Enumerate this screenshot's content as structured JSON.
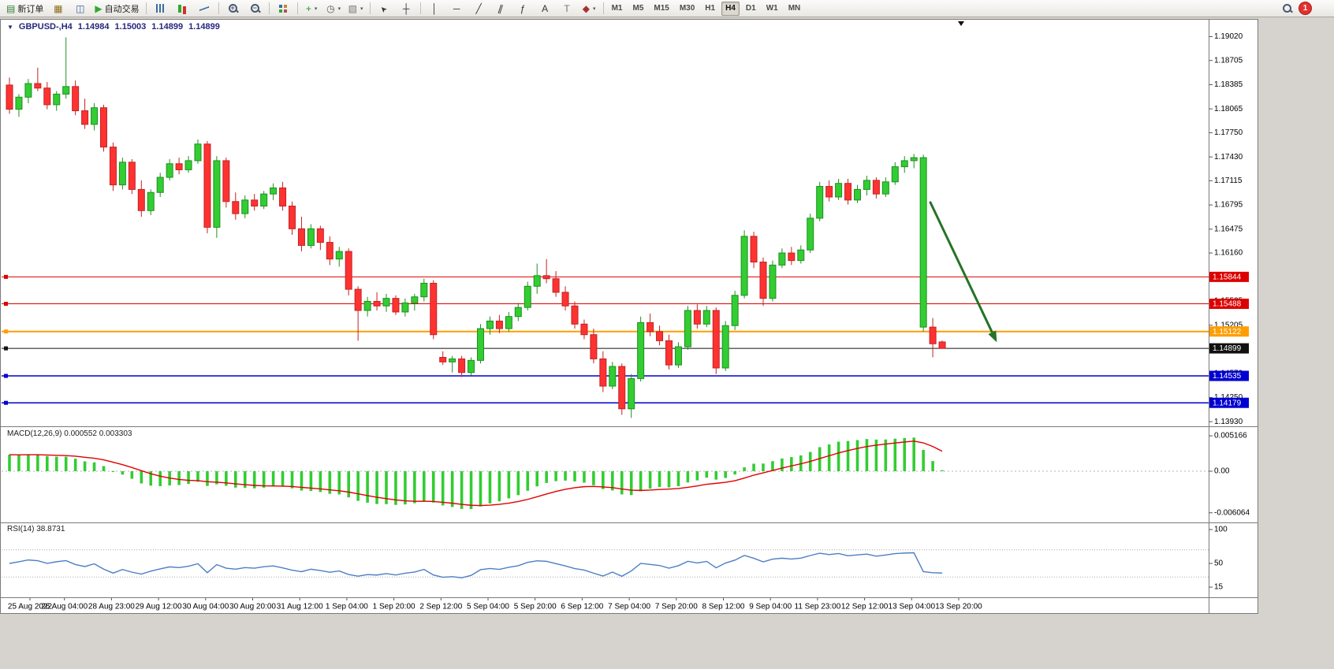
{
  "colors": {
    "bull": "#32CD32",
    "bull_border": "#1f8f1f",
    "bear": "#FF3232",
    "bear_border": "#c22222",
    "macd_hist": "#32CD32",
    "macd_signal": "#E00000",
    "rsi_line": "#4C7FC4",
    "arrow_green": "#267326",
    "header_text": "#26267E"
  },
  "icons": {
    "dropdown_glyph": "▼"
  },
  "toolbar": {
    "notification_count": "1",
    "timeframes": [
      "M1",
      "M5",
      "M15",
      "M30",
      "H1",
      "H4",
      "D1",
      "W1",
      "MN"
    ],
    "active_timeframe": "H4",
    "items": [
      {
        "name": "new-order-button",
        "glyph": "▤",
        "color": "#2e7d32",
        "label": "新订单"
      },
      {
        "name": "chart-window-icon",
        "glyph": "▦",
        "color": "#8a6d1a"
      },
      {
        "name": "market-depth-icon",
        "glyph": "◫",
        "color": "#3a5fa0"
      },
      {
        "name": "autotrading-button",
        "glyph": "▶",
        "color": "#2eaa2e",
        "label": "自动交易"
      },
      {
        "sep": true
      },
      {
        "name": "bar-chart-icon",
        "cls": "ic-bars"
      },
      {
        "name": "candlestick-chart-icon",
        "cls": "ic-candles"
      },
      {
        "name": "line-chart-icon",
        "cls": "ic-line"
      },
      {
        "sep": true
      },
      {
        "name": "zoom-in-icon",
        "cls": "ic-mag",
        "glyph": "+"
      },
      {
        "name": "zoom-out-icon",
        "cls": "ic-mag",
        "glyph": "−"
      },
      {
        "sep": true
      },
      {
        "name": "tile-windows-icon",
        "cls": "ic-tile"
      },
      {
        "sep": true
      },
      {
        "name": "indicators-button",
        "glyph": "+",
        "color": "#1f9d1f",
        "dropdown": true
      },
      {
        "name": "periods-button",
        "glyph": "◷",
        "color": "#555555",
        "dropdown": true
      },
      {
        "name": "templates-button",
        "glyph": "▧",
        "color": "#777777",
        "dropdown": true
      },
      {
        "sep": true
      },
      {
        "name": "cursor-icon",
        "glyph": "➤",
        "cls": "ic-cursor"
      },
      {
        "name": "crosshair-icon",
        "glyph": "┼",
        "color": "#333333"
      },
      {
        "sep": true
      },
      {
        "name": "vertical-line-icon",
        "glyph": "│",
        "color": "#333333"
      },
      {
        "name": "horizontal-line-icon",
        "glyph": "─",
        "color": "#333333"
      },
      {
        "name": "trendline-icon",
        "glyph": "╱",
        "color": "#333333"
      },
      {
        "name": "channel-icon",
        "glyph": "∥",
        "cls": "ic-slant"
      },
      {
        "name": "fibonacci-icon",
        "glyph": "ƒ",
        "color": "#333333"
      },
      {
        "name": "text-icon",
        "glyph": "A",
        "color": "#333333"
      },
      {
        "name": "label-icon",
        "glyph": "T",
        "color": "#777777"
      },
      {
        "name": "arrows-icon",
        "glyph": "◆",
        "color": "#a33333",
        "dropdown": true
      },
      {
        "sep": true
      }
    ]
  },
  "chart": {
    "symbol_label": "GBPUSD-,H4",
    "open": "1.14984",
    "high": "1.15003",
    "low": "1.14899",
    "close": "1.14899",
    "ylim": [
      1.139,
      1.1915
    ],
    "y_axis_labels": [
      {
        "price": 1.1902,
        "label": "1.19020"
      },
      {
        "price": 1.18705,
        "label": "1.18705"
      },
      {
        "price": 1.18385,
        "label": "1.18385"
      },
      {
        "price": 1.18065,
        "label": "1.18065"
      },
      {
        "price": 1.1775,
        "label": "1.17750"
      },
      {
        "price": 1.1743,
        "label": "1.17430"
      },
      {
        "price": 1.17115,
        "label": "1.17115"
      },
      {
        "price": 1.16795,
        "label": "1.16795"
      },
      {
        "price": 1.16475,
        "label": "1.16475"
      },
      {
        "price": 1.1616,
        "label": "1.16160"
      },
      {
        "price": 1.1584,
        "label": "1.15840"
      },
      {
        "price": 1.15525,
        "label": "1.15525"
      },
      {
        "price": 1.15205,
        "label": "1.15205"
      },
      {
        "price": 1.1489,
        "label": "1.14890"
      },
      {
        "price": 1.1457,
        "label": "1.14570"
      },
      {
        "price": 1.1425,
        "label": "1.14250"
      },
      {
        "price": 1.1393,
        "label": "1.13930"
      }
    ],
    "levels": [
      {
        "label": "1.15844",
        "price": 1.15844,
        "color": "#DD0000",
        "width": 1
      },
      {
        "label": "1.15488",
        "price": 1.15488,
        "color": "#DD0000",
        "width": 1
      },
      {
        "label": "1.15122",
        "price": 1.15122,
        "color": "#FF9E00",
        "width": 2
      },
      {
        "label": "1.14899",
        "price": 1.14899,
        "color": "#111111",
        "width": 1,
        "current": true
      },
      {
        "label": "1.14535",
        "price": 1.14535,
        "color": "#0000D0",
        "width": 1.5
      },
      {
        "label": "1.14179",
        "price": 1.14179,
        "color": "#0000D0",
        "width": 1.5
      }
    ]
  },
  "chart_data": {
    "type": "candlestick",
    "symbol": "GBPUSD-",
    "timeframe": "H4",
    "title": "GBPUSD-,H4  1.14984 1.15003 1.14899 1.14899",
    "ylim": [
      1.139,
      1.1915
    ],
    "x_labels": [
      "25 Aug 2022",
      "26 Aug 04:00",
      "28 Aug 23:00",
      "29 Aug 12:00",
      "30 Aug 04:00",
      "30 Aug 20:00",
      "31 Aug 12:00",
      "1 Sep 04:00",
      "1 Sep 20:00",
      "2 Sep 12:00",
      "5 Sep 04:00",
      "5 Sep 20:00",
      "6 Sep 12:00",
      "7 Sep 04:00",
      "7 Sep 20:00",
      "8 Sep 12:00",
      "9 Sep 04:00",
      "11 Sep 23:00",
      "12 Sep 12:00",
      "13 Sep 04:00",
      "13 Sep 20:00"
    ],
    "candles": [
      [
        1.1838,
        1.1848,
        1.18,
        1.1806
      ],
      [
        1.1806,
        1.1826,
        1.1796,
        1.1822
      ],
      [
        1.1822,
        1.1846,
        1.1814,
        1.184
      ],
      [
        1.184,
        1.1861,
        1.183,
        1.1834
      ],
      [
        1.1834,
        1.1842,
        1.1806,
        1.1812
      ],
      [
        1.1812,
        1.183,
        1.1804,
        1.1826
      ],
      [
        1.1826,
        1.1901,
        1.182,
        1.1836
      ],
      [
        1.1836,
        1.1844,
        1.1798,
        1.1804
      ],
      [
        1.1804,
        1.182,
        1.178,
        1.1786
      ],
      [
        1.1786,
        1.1814,
        1.1778,
        1.1808
      ],
      [
        1.1808,
        1.1812,
        1.175,
        1.1756
      ],
      [
        1.1756,
        1.1762,
        1.1698,
        1.1706
      ],
      [
        1.1706,
        1.1742,
        1.17,
        1.1736
      ],
      [
        1.1736,
        1.174,
        1.1694,
        1.17
      ],
      [
        1.17,
        1.1712,
        1.1664,
        1.1672
      ],
      [
        1.1672,
        1.17,
        1.1666,
        1.1696
      ],
      [
        1.1696,
        1.1722,
        1.169,
        1.1716
      ],
      [
        1.1716,
        1.174,
        1.1712,
        1.1734
      ],
      [
        1.1734,
        1.1742,
        1.172,
        1.1726
      ],
      [
        1.1726,
        1.1744,
        1.1722,
        1.1738
      ],
      [
        1.1738,
        1.1766,
        1.1734,
        1.176
      ],
      [
        1.176,
        1.1764,
        1.1642,
        1.165
      ],
      [
        1.165,
        1.1744,
        1.1636,
        1.1738
      ],
      [
        1.1738,
        1.1742,
        1.1676,
        1.1684
      ],
      [
        1.1684,
        1.1696,
        1.166,
        1.1668
      ],
      [
        1.1668,
        1.1692,
        1.1662,
        1.1686
      ],
      [
        1.1686,
        1.1694,
        1.1672,
        1.1678
      ],
      [
        1.1678,
        1.1698,
        1.1674,
        1.1694
      ],
      [
        1.1694,
        1.1708,
        1.1686,
        1.1702
      ],
      [
        1.1702,
        1.171,
        1.1672,
        1.1678
      ],
      [
        1.1678,
        1.1684,
        1.164,
        1.1648
      ],
      [
        1.1648,
        1.1664,
        1.1618,
        1.1626
      ],
      [
        1.1626,
        1.1654,
        1.1622,
        1.1648
      ],
      [
        1.1648,
        1.1652,
        1.162,
        1.163
      ],
      [
        1.163,
        1.1638,
        1.16,
        1.1608
      ],
      [
        1.1608,
        1.1624,
        1.1598,
        1.1618
      ],
      [
        1.1618,
        1.1622,
        1.156,
        1.1568
      ],
      [
        1.1568,
        1.1572,
        1.15,
        1.154
      ],
      [
        1.154,
        1.1558,
        1.1532,
        1.1552
      ],
      [
        1.1552,
        1.1564,
        1.154,
        1.1546
      ],
      [
        1.1546,
        1.1562,
        1.1538,
        1.1556
      ],
      [
        1.1556,
        1.156,
        1.1534,
        1.1538
      ],
      [
        1.1538,
        1.1556,
        1.1532,
        1.155
      ],
      [
        1.155,
        1.1562,
        1.154,
        1.1558
      ],
      [
        1.1558,
        1.1582,
        1.1552,
        1.1576
      ],
      [
        1.1576,
        1.158,
        1.1502,
        1.1508
      ],
      [
        1.1478,
        1.1486,
        1.1468,
        1.1472
      ],
      [
        1.1472,
        1.148,
        1.1458,
        1.1476
      ],
      [
        1.1476,
        1.148,
        1.1452,
        1.1458
      ],
      [
        1.1458,
        1.1478,
        1.1454,
        1.1474
      ],
      [
        1.1474,
        1.1522,
        1.147,
        1.1516
      ],
      [
        1.1516,
        1.1532,
        1.1508,
        1.1526
      ],
      [
        1.1526,
        1.1534,
        1.151,
        1.1516
      ],
      [
        1.1516,
        1.1538,
        1.1512,
        1.1532
      ],
      [
        1.1532,
        1.155,
        1.1526,
        1.1544
      ],
      [
        1.1544,
        1.1578,
        1.154,
        1.1572
      ],
      [
        1.1572,
        1.1602,
        1.1562,
        1.1586
      ],
      [
        1.1586,
        1.1608,
        1.1576,
        1.1582
      ],
      [
        1.1582,
        1.1592,
        1.1558,
        1.1564
      ],
      [
        1.1564,
        1.1572,
        1.154,
        1.1546
      ],
      [
        1.1546,
        1.1552,
        1.1516,
        1.1522
      ],
      [
        1.1522,
        1.1528,
        1.1502,
        1.1508
      ],
      [
        1.1508,
        1.1516,
        1.147,
        1.1476
      ],
      [
        1.1476,
        1.1486,
        1.1432,
        1.144
      ],
      [
        1.144,
        1.1472,
        1.1436,
        1.1466
      ],
      [
        1.1466,
        1.147,
        1.1402,
        1.141
      ],
      [
        1.141,
        1.1456,
        1.1398,
        1.145
      ],
      [
        1.145,
        1.1532,
        1.1446,
        1.1524
      ],
      [
        1.1524,
        1.1536,
        1.1506,
        1.1512
      ],
      [
        1.1512,
        1.152,
        1.1494,
        1.15
      ],
      [
        1.15,
        1.1508,
        1.1462,
        1.1468
      ],
      [
        1.1468,
        1.1498,
        1.1464,
        1.1492
      ],
      [
        1.1492,
        1.1546,
        1.1488,
        1.154
      ],
      [
        1.154,
        1.1548,
        1.1516,
        1.1522
      ],
      [
        1.1522,
        1.1546,
        1.1518,
        1.154
      ],
      [
        1.154,
        1.1544,
        1.1456,
        1.1464
      ],
      [
        1.1464,
        1.1526,
        1.146,
        1.152
      ],
      [
        1.152,
        1.1566,
        1.1514,
        1.156
      ],
      [
        1.156,
        1.1646,
        1.1556,
        1.1638
      ],
      [
        1.1638,
        1.1644,
        1.1596,
        1.1604
      ],
      [
        1.1604,
        1.161,
        1.1546,
        1.1556
      ],
      [
        1.1556,
        1.1606,
        1.1552,
        1.16
      ],
      [
        1.16,
        1.1622,
        1.1596,
        1.1616
      ],
      [
        1.1616,
        1.1624,
        1.16,
        1.1606
      ],
      [
        1.1606,
        1.1626,
        1.1602,
        1.162
      ],
      [
        1.162,
        1.1668,
        1.1616,
        1.1662
      ],
      [
        1.1662,
        1.171,
        1.1658,
        1.1704
      ],
      [
        1.1704,
        1.1712,
        1.1684,
        1.169
      ],
      [
        1.169,
        1.1714,
        1.1686,
        1.1708
      ],
      [
        1.1708,
        1.1714,
        1.168,
        1.1686
      ],
      [
        1.1686,
        1.1706,
        1.1682,
        1.17
      ],
      [
        1.17,
        1.1718,
        1.1692,
        1.1712
      ],
      [
        1.1712,
        1.1716,
        1.1688,
        1.1694
      ],
      [
        1.1694,
        1.1716,
        1.169,
        1.171
      ],
      [
        1.171,
        1.1736,
        1.1706,
        1.173
      ],
      [
        1.173,
        1.1744,
        1.1722,
        1.1738
      ],
      [
        1.1738,
        1.1747,
        1.1728,
        1.1742
      ],
      [
        1.1742,
        1.1746,
        1.1512,
        1.1518,
        "g"
      ],
      [
        1.1518,
        1.153,
        1.1478,
        1.1496
      ],
      [
        1.14984,
        1.15003,
        1.14899,
        1.14899
      ]
    ],
    "indicators": [
      {
        "type": "MACD",
        "header": "MACD(12,26,9) 0.000552 0.003303",
        "params": [
          12,
          26,
          9
        ],
        "macd_value": 0.000552,
        "signal_value": 0.003303,
        "scale_labels": [
          {
            "v": 0.005166,
            "label": "0.005166"
          },
          {
            "v": 0,
            "label": "0.00"
          },
          {
            "v": -0.006064,
            "label": "-0.006064"
          }
        ]
      },
      {
        "type": "RSI",
        "header": "RSI(14) 38.8731",
        "period": 14,
        "value": 38.8731,
        "scale_labels": [
          {
            "v": 100,
            "label": "100"
          },
          {
            "v": 50,
            "label": "50"
          },
          {
            "v": 15,
            "label": "15"
          }
        ],
        "levels": [
          70,
          30
        ]
      }
    ],
    "annotations": [
      {
        "type": "arrow",
        "from": {
          "bar": 97.7,
          "price": 1.1684
        },
        "to": {
          "bar": 104.8,
          "price": 1.1498
        }
      }
    ]
  }
}
